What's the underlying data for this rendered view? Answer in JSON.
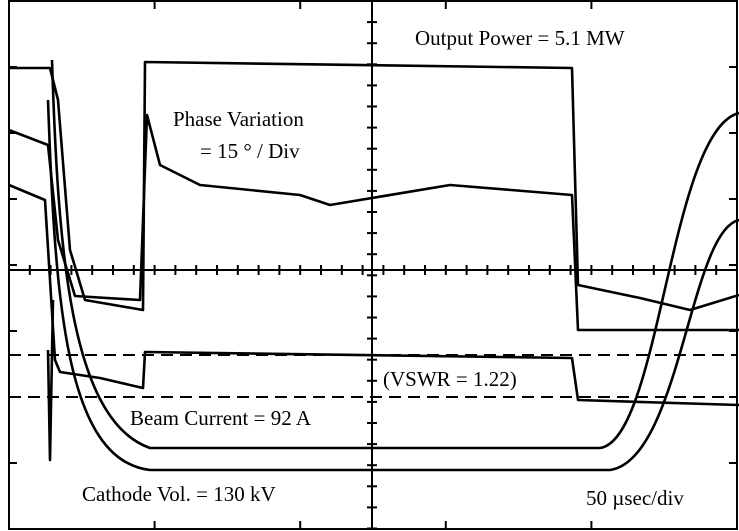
{
  "annotations": {
    "output_power": "Output Power = 5.1 MW",
    "phase_title": "Phase Variation",
    "phase_scale": "= 15 ° / Div",
    "vswr": "(VSWR = 1.22)",
    "beam_current": "Beam Current = 92 A",
    "cathode_voltage": "Cathode Vol. = 130 kV",
    "time_scale": "50 µsec/div"
  }
}
